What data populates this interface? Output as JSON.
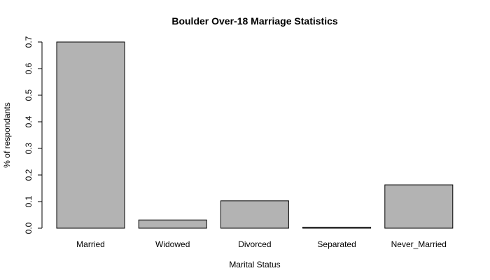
{
  "chart_data": {
    "type": "bar",
    "title": "Boulder Over-18 Marriage Statistics",
    "xlabel": "Marital Status",
    "ylabel": "% of respondants",
    "categories": [
      "Married",
      "Widowed",
      "Divorced",
      "Separated",
      "Never_Married"
    ],
    "values": [
      0.7,
      0.031,
      0.103,
      0.004,
      0.163
    ],
    "ylim": [
      0,
      0.7
    ],
    "yticks": [
      "0.0",
      "0.1",
      "0.2",
      "0.3",
      "0.4",
      "0.5",
      "0.6",
      "0.7"
    ],
    "bar_color": "#b3b3b3",
    "grid": false,
    "legend": "none"
  }
}
